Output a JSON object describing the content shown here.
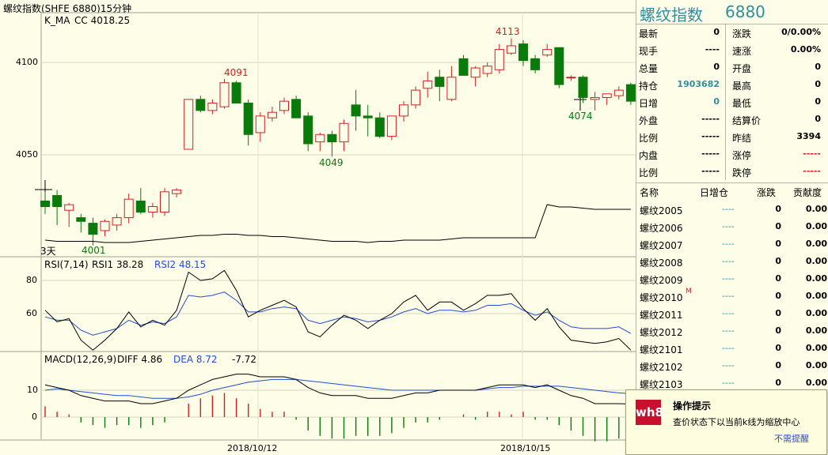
{
  "window": {
    "title": "螺纹指数(SHFE 6880)15分钟"
  },
  "main_panel": {
    "indicator": "K_MA",
    "cc_label": "CC 4018.25",
    "y_ticks": [
      "4100",
      "4050"
    ],
    "high_labels": [
      "4091",
      "4113"
    ],
    "low_labels": [
      "4001",
      "4049",
      "4074"
    ],
    "days_label": "3天"
  },
  "rsi_panel": {
    "title": "RSI(7,14)",
    "rsi1": "RSI1 38.28",
    "rsi2": "RSI2 48.15",
    "y_ticks": [
      "80",
      "60"
    ]
  },
  "macd_panel": {
    "title": "MACD(12,26,9)",
    "diff": "DIFF 4.86",
    "dea": "DEA 8.72",
    "macd": "-7.72",
    "y_ticks": [
      "10",
      "0"
    ]
  },
  "x_axis": {
    "dates": [
      "2018/10/12",
      "2018/10/15"
    ]
  },
  "colors": {
    "up": "#d42020",
    "down": "#0a7a0a",
    "accent_blue": "#1f4fd0"
  },
  "quote": {
    "title": "螺纹指数",
    "code": "6880",
    "left": [
      {
        "label": "最新",
        "value": "0"
      },
      {
        "label": "现手",
        "value": "----"
      },
      {
        "label": "总量",
        "value": "0"
      },
      {
        "label": "持仓",
        "value": "1903682"
      },
      {
        "label": "日增",
        "value": "0"
      },
      {
        "label": "外盘",
        "value": "-----"
      },
      {
        "label": "比例",
        "value": "-----"
      },
      {
        "label": "内盘",
        "value": "-----"
      },
      {
        "label": "比例",
        "value": "-----"
      }
    ],
    "right": [
      {
        "label": "涨跌",
        "value": "0/0.00%"
      },
      {
        "label": "速涨",
        "value": "0.00%"
      },
      {
        "label": "开盘",
        "value": "0"
      },
      {
        "label": "最高",
        "value": "0"
      },
      {
        "label": "最低",
        "value": "0"
      },
      {
        "label": "结算价",
        "value": "0"
      },
      {
        "label": "昨结",
        "value": "3394"
      },
      {
        "label": "涨停",
        "value": "-----"
      },
      {
        "label": "跌停",
        "value": "-----"
      }
    ]
  },
  "contracts": {
    "headers": [
      "名称",
      "日增仓",
      "涨跌",
      "贡献度"
    ],
    "rows": [
      {
        "name": "螺纹2005",
        "change": "----",
        "updown": "0",
        "contrib": "0.00",
        "mark": ""
      },
      {
        "name": "螺纹2006",
        "change": "----",
        "updown": "0",
        "contrib": "0.00",
        "mark": ""
      },
      {
        "name": "螺纹2007",
        "change": "----",
        "updown": "0",
        "contrib": "0.00",
        "mark": ""
      },
      {
        "name": "螺纹2008",
        "change": "----",
        "updown": "0",
        "contrib": "0.00",
        "mark": ""
      },
      {
        "name": "螺纹2009",
        "change": "----",
        "updown": "0",
        "contrib": "0.00",
        "mark": ""
      },
      {
        "name": "螺纹2010",
        "change": "----",
        "updown": "0",
        "contrib": "0.00",
        "mark": "M"
      },
      {
        "name": "螺纹2011",
        "change": "----",
        "updown": "0",
        "contrib": "0.00",
        "mark": ""
      },
      {
        "name": "螺纹2012",
        "change": "----",
        "updown": "0",
        "contrib": "0.00",
        "mark": ""
      },
      {
        "name": "螺纹2101",
        "change": "----",
        "updown": "0",
        "contrib": "0.00",
        "mark": ""
      },
      {
        "name": "螺纹2102",
        "change": "----",
        "updown": "0",
        "contrib": "0.00",
        "mark": ""
      },
      {
        "name": "螺纹2103",
        "change": "----",
        "updown": "0",
        "contrib": "0.00",
        "mark": ""
      }
    ]
  },
  "popup": {
    "title": "操作提示",
    "message": "查价状态下以当前k线为缩放中心",
    "dismiss": "不需提醒",
    "logo": "wh8"
  },
  "chart_data": [
    {
      "type": "candlestick",
      "title": "K_MA",
      "ylim": [
        3998,
        4122
      ],
      "y_ticks": [
        4100,
        4050
      ],
      "candles": [
        {
          "o": 4025,
          "h": 4030,
          "l": 4018,
          "c": 4022
        },
        {
          "o": 4028,
          "h": 4031,
          "l": 4012,
          "c": 4022
        },
        {
          "o": 4020,
          "h": 4024,
          "l": 4011,
          "c": 4023
        },
        {
          "o": 4016,
          "h": 4018,
          "l": 4008,
          "c": 4014
        },
        {
          "o": 4013,
          "h": 4016,
          "l": 4001,
          "c": 4007
        },
        {
          "o": 4009,
          "h": 4015,
          "l": 4006,
          "c": 4014
        },
        {
          "o": 4012,
          "h": 4018,
          "l": 4009,
          "c": 4016
        },
        {
          "o": 4016,
          "h": 4029,
          "l": 4013,
          "c": 4026
        },
        {
          "o": 4025,
          "h": 4032,
          "l": 4018,
          "c": 4019
        },
        {
          "o": 4019,
          "h": 4024,
          "l": 4016,
          "c": 4022
        },
        {
          "o": 4019,
          "h": 4032,
          "l": 4017,
          "c": 4030
        },
        {
          "o": 4029,
          "h": 4032,
          "l": 4027,
          "c": 4031
        },
        {
          "o": 4053,
          "h": 4080,
          "l": 4053,
          "c": 4080
        },
        {
          "o": 4080,
          "h": 4082,
          "l": 4073,
          "c": 4074
        },
        {
          "o": 4074,
          "h": 4080,
          "l": 4072,
          "c": 4078
        },
        {
          "o": 4076,
          "h": 4091,
          "l": 4075,
          "c": 4089
        },
        {
          "o": 4089,
          "h": 4090,
          "l": 4078,
          "c": 4078
        },
        {
          "o": 4078,
          "h": 4080,
          "l": 4055,
          "c": 4061
        },
        {
          "o": 4062,
          "h": 4073,
          "l": 4057,
          "c": 4071
        },
        {
          "o": 4070,
          "h": 4076,
          "l": 4068,
          "c": 4073
        },
        {
          "o": 4074,
          "h": 4081,
          "l": 4072,
          "c": 4079
        },
        {
          "o": 4080,
          "h": 4082,
          "l": 4070,
          "c": 4070
        },
        {
          "o": 4071,
          "h": 4073,
          "l": 4052,
          "c": 4056
        },
        {
          "o": 4057,
          "h": 4062,
          "l": 4052,
          "c": 4061
        },
        {
          "o": 4061,
          "h": 4063,
          "l": 4049,
          "c": 4057
        },
        {
          "o": 4057,
          "h": 4069,
          "l": 4052,
          "c": 4067
        },
        {
          "o": 4077,
          "h": 4085,
          "l": 4063,
          "c": 4071
        },
        {
          "o": 4071,
          "h": 4077,
          "l": 4060,
          "c": 4070
        },
        {
          "o": 4070,
          "h": 4073,
          "l": 4059,
          "c": 4060
        },
        {
          "o": 4060,
          "h": 4071,
          "l": 4058,
          "c": 4071
        },
        {
          "o": 4071,
          "h": 4079,
          "l": 4068,
          "c": 4077
        },
        {
          "o": 4077,
          "h": 4087,
          "l": 4075,
          "c": 4085
        },
        {
          "o": 4086,
          "h": 4095,
          "l": 4081,
          "c": 4090
        },
        {
          "o": 4092,
          "h": 4096,
          "l": 4079,
          "c": 4087
        },
        {
          "o": 4080,
          "h": 4098,
          "l": 4079,
          "c": 4092
        },
        {
          "o": 4102,
          "h": 4104,
          "l": 4093,
          "c": 4093
        },
        {
          "o": 4092,
          "h": 4098,
          "l": 4087,
          "c": 4097
        },
        {
          "o": 4094,
          "h": 4100,
          "l": 4092,
          "c": 4098
        },
        {
          "o": 4096,
          "h": 4110,
          "l": 4094,
          "c": 4107
        },
        {
          "o": 4105,
          "h": 4113,
          "l": 4104,
          "c": 4109
        },
        {
          "o": 4110,
          "h": 4112,
          "l": 4098,
          "c": 4101
        },
        {
          "o": 4102,
          "h": 4104,
          "l": 4094,
          "c": 4096
        },
        {
          "o": 4104,
          "h": 4110,
          "l": 4103,
          "c": 4107
        },
        {
          "o": 4108,
          "h": 4108,
          "l": 4086,
          "c": 4088
        },
        {
          "o": 4092,
          "h": 4093,
          "l": 4090,
          "c": 4092
        },
        {
          "o": 4092,
          "h": 4093,
          "l": 4078,
          "c": 4081
        },
        {
          "o": 4080,
          "h": 4084,
          "l": 4074,
          "c": 4081
        },
        {
          "o": 4081,
          "h": 4083,
          "l": 4077,
          "c": 4083
        },
        {
          "o": 4082,
          "h": 4087,
          "l": 4080,
          "c": 4085
        },
        {
          "o": 4088,
          "h": 4089,
          "l": 4077,
          "c": 4079
        }
      ],
      "volume_line": [
        12,
        11,
        11,
        11,
        11,
        10,
        10,
        10,
        11,
        12,
        13,
        14,
        15,
        16,
        16,
        17,
        17,
        16,
        16,
        15,
        15,
        14,
        13,
        12,
        11,
        11,
        11,
        10,
        11,
        11,
        12,
        12,
        12,
        12,
        13,
        14,
        14,
        14,
        14,
        14,
        14,
        14,
        42,
        40,
        40,
        39,
        38,
        38,
        38,
        38
      ]
    },
    {
      "type": "line",
      "title": "RSI(7,14)",
      "ylim": [
        30,
        92
      ],
      "series": [
        {
          "name": "RSI1",
          "values": [
            62,
            55,
            57,
            44,
            38,
            44,
            51,
            61,
            52,
            56,
            53,
            62,
            85,
            80,
            81,
            86,
            74,
            58,
            62,
            65,
            68,
            64,
            49,
            46,
            53,
            59,
            56,
            51,
            56,
            60,
            67,
            71,
            62,
            67,
            67,
            62,
            66,
            71,
            71,
            72,
            63,
            56,
            63,
            52,
            44,
            43,
            42,
            43,
            45,
            38
          ]
        },
        {
          "name": "RSI2",
          "values": [
            58,
            56,
            56,
            50,
            47,
            49,
            51,
            56,
            53,
            55,
            54,
            58,
            71,
            70,
            71,
            73,
            68,
            61,
            61,
            63,
            64,
            63,
            56,
            54,
            56,
            58,
            57,
            55,
            56,
            58,
            61,
            63,
            60,
            62,
            62,
            61,
            62,
            65,
            65,
            66,
            62,
            59,
            61,
            56,
            52,
            51,
            51,
            51,
            52,
            48
          ]
        }
      ]
    },
    {
      "type": "bar",
      "title": "MACD(12,26,9)",
      "ylim": [
        -8,
        20
      ],
      "series": [
        {
          "name": "DIFF",
          "values": [
            12,
            11,
            10,
            8,
            7,
            6,
            6,
            6,
            5,
            5,
            6,
            7,
            10,
            12,
            14,
            15,
            16,
            16,
            15,
            15,
            15,
            14,
            11,
            9,
            8,
            8,
            8,
            7,
            7,
            7,
            8,
            9,
            9,
            10,
            10,
            10,
            10,
            11,
            12,
            12,
            12,
            11,
            12,
            10,
            8,
            7,
            5,
            5,
            5,
            4.86
          ]
        },
        {
          "name": "DEA",
          "values": [
            10,
            10.5,
            10,
            9.5,
            9,
            8.5,
            8,
            8,
            7.5,
            7,
            7,
            7,
            7.5,
            8.5,
            10,
            11,
            12,
            13,
            13.5,
            14,
            14,
            14,
            13.5,
            13,
            12.5,
            12,
            11.5,
            11,
            10.5,
            10,
            10,
            10,
            10,
            10,
            10,
            10,
            10,
            10.5,
            11,
            11,
            11.5,
            11.5,
            11.5,
            11.5,
            11,
            10.5,
            10,
            9.5,
            9,
            8.72
          ]
        },
        {
          "name": "MACD",
          "values": [
            4,
            2,
            1,
            -2,
            -3,
            -4,
            -3,
            -3,
            -4,
            -3,
            -2,
            0,
            5,
            7,
            8,
            9,
            7,
            5,
            3,
            2,
            2,
            -1,
            -5,
            -7,
            -8,
            -8,
            -7,
            -7,
            -7,
            -6,
            -4,
            -2,
            -2,
            -1,
            0,
            1,
            -1,
            2,
            2,
            1,
            2,
            -1,
            -1,
            -3,
            -5,
            -7,
            -9,
            -9,
            -8,
            -7.72
          ]
        }
      ]
    }
  ]
}
